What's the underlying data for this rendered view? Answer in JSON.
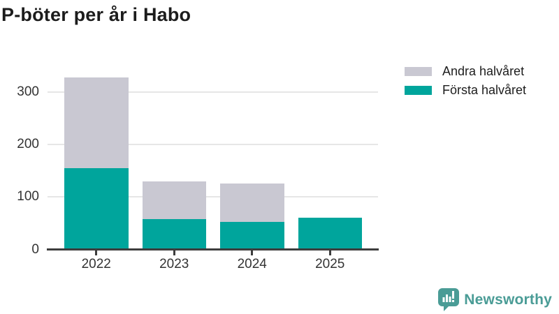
{
  "chart_data": {
    "type": "bar",
    "stacked": true,
    "title": "P-böter per år i Habo",
    "categories": [
      "2022",
      "2023",
      "2024",
      "2025"
    ],
    "series": [
      {
        "name": "Första halvåret",
        "color": "#00A59C",
        "values": [
          155,
          58,
          52,
          60
        ]
      },
      {
        "name": "Andra halvåret",
        "color": "#C9C8D2",
        "values": [
          173,
          72,
          74,
          0
        ]
      }
    ],
    "legend_order": [
      "Andra halvåret",
      "Första halvåret"
    ],
    "legend_position": "top-right",
    "xlabel": "",
    "ylabel": "",
    "yticks": [
      0,
      100,
      200,
      300
    ],
    "ylim": [
      0,
      340
    ],
    "grid": true
  },
  "colors": {
    "axis": "#3D3D3D",
    "gridline": "#E6E6E6",
    "tick_text": "#333333",
    "title_text": "#1c1c1c",
    "brand_teal": "#4A9C96"
  },
  "branding": {
    "logo_text": "Newsworthy"
  }
}
